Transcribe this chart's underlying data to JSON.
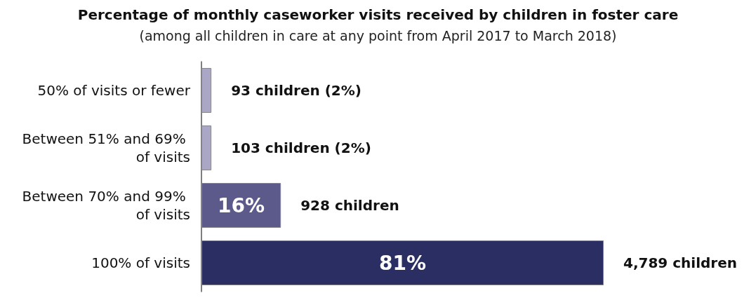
{
  "chart_data": {
    "type": "bar",
    "orientation": "horizontal",
    "title": "Percentage of monthly caseworker visits received by children in foster care",
    "subtitle": "(among all children in care at any point from April 2017 to March 2018)",
    "categories": [
      "50% of visits or fewer",
      "Between 51% and 69% of visits",
      "Between 70% and 99% of visits",
      "100% of visits"
    ],
    "values": [
      2,
      2,
      16,
      81
    ],
    "colors": [
      "#a9a6c6",
      "#a9a6c6",
      "#5c5a8b",
      "#2b2e63"
    ],
    "value_labels": [
      null,
      null,
      "16%",
      "81%"
    ],
    "annotations": [
      {
        "text": "93 children (2%)",
        "x": 2,
        "y": "50% of visits or fewer"
      },
      {
        "text": "103 children (2%)",
        "x": 2,
        "y": "Between 51% and 69% of visits"
      },
      {
        "text": "928 children",
        "x": 16,
        "y": "Between 70% and 99% of visits"
      },
      {
        "text": "4,789 children",
        "x": 81,
        "y": "100% of visits"
      }
    ],
    "grid": false
  }
}
